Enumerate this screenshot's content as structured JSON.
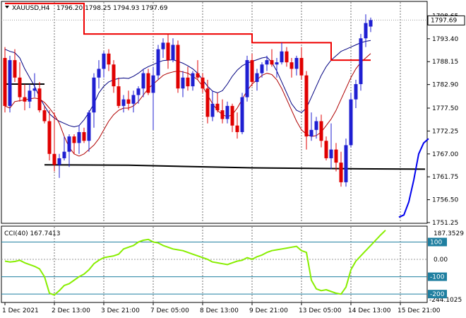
{
  "header": {
    "symbol": "XAUUSD,H4",
    "ohlc": "1796.20 1798.25 1794.93 1797.69"
  },
  "indicator": {
    "label": "CCI(40) 167.7413",
    "levels": [
      {
        "value": 100,
        "label": "100"
      },
      {
        "value": 0,
        "label": "0.00"
      },
      {
        "value": -100,
        "label": "-100"
      },
      {
        "value": -200,
        "label": "-200"
      }
    ],
    "axis_max_label": "187.3529",
    "axis_min_label": "-244.1025"
  },
  "current_price_label": "1797.69",
  "colors": {
    "bull": "#1f1fd2",
    "bear": "#e00000",
    "ma_slow": "#000080",
    "ma_fast": "#b00000",
    "stop": "#ee0000",
    "support": "#000000",
    "fractal": "#0000ee",
    "cci": "#88ee00",
    "level_line": "#1f7fa0"
  },
  "chart_data": [
    {
      "type": "candlestick",
      "x_ticks": [
        {
          "i": 0,
          "label": "1 Dec 2021"
        },
        {
          "i": 10,
          "label": "2 Dec 13:00"
        },
        {
          "i": 20,
          "label": "3 Dec 21:00"
        },
        {
          "i": 30,
          "label": "7 Dec 05:00"
        },
        {
          "i": 40,
          "label": "8 Dec 13:00"
        },
        {
          "i": 50,
          "label": "9 Dec 21:00"
        },
        {
          "i": 60,
          "label": "13 Dec 05:00"
        },
        {
          "i": 70,
          "label": "14 Dec 13:00"
        },
        {
          "i": 80,
          "label": "15 Dec 21:00"
        }
      ],
      "y_ticks": [
        1798.65,
        1793.4,
        1788.15,
        1782.9,
        1777.5,
        1772.25,
        1767.0,
        1761.75,
        1756.5,
        1751.25
      ],
      "ylim": [
        1751.25,
        1801.8
      ],
      "candles": [
        [
          1789.0,
          1791.5,
          1776.5,
          1778.0
        ],
        [
          1778.0,
          1789.5,
          1776.5,
          1788.5
        ],
        [
          1788.5,
          1791.0,
          1783.5,
          1784.5
        ],
        [
          1784.5,
          1788.0,
          1779.0,
          1780.0
        ],
        [
          1780.0,
          1783.0,
          1777.0,
          1779.0
        ],
        [
          1779.0,
          1783.0,
          1777.5,
          1781.5
        ],
        [
          1781.5,
          1785.5,
          1780.0,
          1782.0
        ],
        [
          1782.0,
          1783.5,
          1776.5,
          1777.0
        ],
        [
          1777.0,
          1778.0,
          1774.0,
          1774.5
        ],
        [
          1774.5,
          1777.0,
          1765.5,
          1767.0
        ],
        [
          1767.0,
          1776.5,
          1763.0,
          1764.5
        ],
        [
          1764.5,
          1767.0,
          1761.5,
          1766.0
        ],
        [
          1766.0,
          1771.0,
          1765.5,
          1767.5
        ],
        [
          1767.5,
          1771.5,
          1764.0,
          1771.0
        ],
        [
          1771.0,
          1771.5,
          1767.0,
          1769.5
        ],
        [
          1769.5,
          1773.5,
          1767.0,
          1772.0
        ],
        [
          1772.0,
          1773.0,
          1769.5,
          1770.0
        ],
        [
          1770.0,
          1777.0,
          1767.5,
          1776.5
        ],
        [
          1776.5,
          1785.5,
          1773.0,
          1784.5
        ],
        [
          1784.5,
          1788.5,
          1782.0,
          1786.5
        ],
        [
          1786.5,
          1790.5,
          1784.5,
          1790.0
        ],
        [
          1790.0,
          1791.0,
          1786.0,
          1787.5
        ],
        [
          1787.5,
          1788.5,
          1781.0,
          1782.5
        ],
        [
          1782.5,
          1784.5,
          1777.5,
          1778.0
        ],
        [
          1778.0,
          1780.5,
          1776.5,
          1779.5
        ],
        [
          1779.5,
          1781.5,
          1777.0,
          1778.5
        ],
        [
          1778.5,
          1781.5,
          1776.5,
          1780.5
        ],
        [
          1780.5,
          1782.5,
          1778.5,
          1782.0
        ],
        [
          1782.0,
          1786.5,
          1780.0,
          1785.5
        ],
        [
          1785.5,
          1786.5,
          1780.5,
          1781.0
        ],
        [
          1781.0,
          1787.0,
          1772.5,
          1785.0
        ],
        [
          1785.0,
          1792.0,
          1784.0,
          1791.0
        ],
        [
          1791.0,
          1793.5,
          1789.0,
          1792.5
        ],
        [
          1792.5,
          1794.5,
          1786.5,
          1788.5
        ],
        [
          1788.5,
          1793.5,
          1788.0,
          1792.0
        ],
        [
          1792.0,
          1793.0,
          1781.0,
          1782.0
        ],
        [
          1782.0,
          1786.0,
          1780.0,
          1784.5
        ],
        [
          1784.5,
          1787.0,
          1781.5,
          1782.5
        ],
        [
          1782.5,
          1786.0,
          1781.5,
          1785.5
        ],
        [
          1785.5,
          1788.5,
          1784.0,
          1784.5
        ],
        [
          1784.5,
          1785.5,
          1781.0,
          1782.0
        ],
        [
          1782.0,
          1784.0,
          1774.0,
          1775.5
        ],
        [
          1775.5,
          1781.5,
          1774.5,
          1778.5
        ],
        [
          1778.5,
          1781.0,
          1776.5,
          1777.0
        ],
        [
          1777.0,
          1779.5,
          1774.0,
          1775.0
        ],
        [
          1775.0,
          1779.0,
          1774.0,
          1778.0
        ],
        [
          1778.0,
          1778.5,
          1772.0,
          1773.5
        ],
        [
          1773.5,
          1776.5,
          1770.5,
          1772.0
        ],
        [
          1772.0,
          1781.0,
          1771.5,
          1780.0
        ],
        [
          1780.0,
          1789.5,
          1779.0,
          1788.5
        ],
        [
          1788.5,
          1790.0,
          1782.5,
          1783.5
        ],
        [
          1783.5,
          1786.5,
          1781.5,
          1785.5
        ],
        [
          1785.5,
          1788.0,
          1784.5,
          1787.5
        ],
        [
          1787.5,
          1789.5,
          1786.0,
          1788.5
        ],
        [
          1788.5,
          1791.0,
          1787.0,
          1787.5
        ],
        [
          1787.5,
          1789.0,
          1784.5,
          1788.0
        ],
        [
          1788.0,
          1792.5,
          1787.5,
          1790.5
        ],
        [
          1790.5,
          1791.5,
          1787.0,
          1788.0
        ],
        [
          1788.0,
          1789.0,
          1784.5,
          1786.5
        ],
        [
          1786.5,
          1789.5,
          1785.0,
          1789.0
        ],
        [
          1789.0,
          1791.5,
          1784.0,
          1785.0
        ],
        [
          1785.0,
          1786.0,
          1768.0,
          1771.0
        ],
        [
          1771.0,
          1776.5,
          1770.0,
          1772.5
        ],
        [
          1772.5,
          1775.5,
          1770.5,
          1774.5
        ],
        [
          1774.5,
          1776.0,
          1768.5,
          1770.0
        ],
        [
          1770.0,
          1771.0,
          1765.5,
          1766.0
        ],
        [
          1766.0,
          1774.0,
          1763.5,
          1768.0
        ],
        [
          1768.0,
          1769.5,
          1763.0,
          1765.0
        ],
        [
          1765.0,
          1767.5,
          1759.5,
          1760.5
        ],
        [
          1760.5,
          1770.5,
          1759.5,
          1769.0
        ],
        [
          1769.0,
          1781.0,
          1768.5,
          1779.5
        ],
        [
          1779.5,
          1784.0,
          1777.5,
          1783.0
        ],
        [
          1783.0,
          1794.5,
          1781.5,
          1793.5
        ],
        [
          1793.5,
          1799.0,
          1791.5,
          1797.0
        ],
        [
          1796.2,
          1798.25,
          1794.93,
          1797.69
        ]
      ],
      "ma_slow": [
        1791.0,
        1790.5,
        1790.2,
        1789.0,
        1786.5,
        1784.5,
        1782.5,
        1780.0,
        1778.0,
        1776.2,
        1775.2,
        1774.5,
        1774.0,
        1773.5,
        1773.2,
        1773.5,
        1774.8,
        1776.5,
        1778.5,
        1781.0,
        1782.5,
        1783.5,
        1784.0,
        1784.3,
        1784.4,
        1784.3,
        1784.8,
        1785.5,
        1786.4,
        1787.0,
        1787.5,
        1788.0,
        1788.4,
        1788.5,
        1788.6,
        1788.2,
        1787.8,
        1787.2,
        1786.5,
        1785.5,
        1784.0,
        1782.5,
        1781.4,
        1781.0,
        1781.5,
        1783.0,
        1784.8,
        1786.2,
        1787.2,
        1787.8,
        1788.2,
        1788.6,
        1789.0,
        1789.2,
        1788.0,
        1786.0,
        1783.5,
        1781.0,
        1778.5,
        1777.0,
        1776.5,
        1777.5,
        1780.0,
        1782.5,
        1785.0,
        1787.0,
        1788.5,
        1789.5,
        1790.5,
        1791.0,
        1791.5,
        1792.0,
        1792.5,
        1792.8,
        1793.0
      ],
      "ma_fast": [
        1778.0,
        1777.5,
        1779.0,
        1779.2,
        1779.4,
        1779.6,
        1779.8,
        1779.6,
        1778.8,
        1777.5,
        1776.0,
        1774.0,
        1771.0,
        1768.5,
        1767.0,
        1766.5,
        1767.0,
        1768.0,
        1769.0,
        1770.5,
        1772.5,
        1774.5,
        1776.0,
        1777.0,
        1777.5,
        1777.5,
        1778.0,
        1779.0,
        1780.5,
        1782.0,
        1783.0,
        1784.0,
        1785.0,
        1785.5,
        1785.8,
        1786.0,
        1785.8,
        1785.5,
        1784.8,
        1784.0,
        1782.5,
        1780.5,
        1778.5,
        1777.0,
        1776.0,
        1775.5,
        1776.0,
        1777.5,
        1779.5,
        1781.5,
        1783.0,
        1784.0,
        1785.0,
        1785.5,
        1785.2,
        1784.0,
        1782.0,
        1779.5,
        1777.0,
        1774.5,
        1772.5,
        1771.5,
        1771.0,
        1771.2,
        1772.0,
        1773.5,
        1775.0,
        1777.0,
        1779.5,
        1782.0,
        1784.5,
        1786.5,
        1788.0,
        1789.0,
        1790.0
      ],
      "stop_line": [
        1801.5,
        1801.5,
        1801.5,
        1801.5,
        1801.5,
        1801.5,
        1801.5,
        1801.5,
        1801.5,
        1801.5,
        1801.5,
        1801.5,
        1801.5,
        1801.5,
        1801.5,
        1801.5,
        1794.5,
        1794.5,
        1794.5,
        1794.5,
        1794.5,
        1794.5,
        1794.5,
        1794.5,
        1794.5,
        1794.5,
        1794.5,
        1794.5,
        1794.5,
        1794.5,
        1794.5,
        1794.5,
        1794.5,
        1794.5,
        1794.5,
        1794.5,
        1794.5,
        1794.5,
        1794.5,
        1794.5,
        1794.5,
        1794.5,
        1794.5,
        1794.5,
        1794.5,
        1794.5,
        1794.5,
        1794.5,
        1794.5,
        1794.5,
        1792.5,
        1792.5,
        1792.5,
        1792.5,
        1792.5,
        1792.5,
        1792.5,
        1792.5,
        1792.5,
        1792.5,
        1792.5,
        1792.5,
        1792.5,
        1792.5,
        1792.5,
        1792.5,
        1788.5,
        1788.5,
        1788.5,
        1788.5,
        1788.5,
        1788.5,
        1788.5,
        1788.5,
        1788.5
      ],
      "support_line": [
        [
          8,
          1764.5
        ],
        [
          25,
          1764.4
        ],
        [
          50,
          1763.8
        ],
        [
          70,
          1763.6
        ],
        [
          85,
          1763.5
        ]
      ],
      "resistance_stub": [
        [
          0,
          1783.0
        ],
        [
          8,
          1783.0
        ]
      ],
      "fractal_blue": [
        [
          80,
          1752.5
        ],
        [
          81,
          1753.0
        ],
        [
          82,
          1756.0
        ],
        [
          83,
          1761.0
        ],
        [
          84,
          1767.0
        ],
        [
          85,
          1769.5
        ],
        [
          86,
          1770.5
        ]
      ],
      "current_price": 1797.69
    },
    {
      "type": "line",
      "name": "CCI(40) 167.7413",
      "ylim": [
        -244.1025,
        187.3529
      ],
      "values": [
        -10,
        -15,
        -12,
        -5,
        -20,
        -30,
        -40,
        -55,
        -100,
        -195,
        -205,
        -180,
        -150,
        -140,
        -120,
        -100,
        -85,
        -60,
        -25,
        -5,
        10,
        15,
        20,
        30,
        60,
        70,
        80,
        100,
        110,
        115,
        100,
        95,
        80,
        70,
        60,
        55,
        50,
        40,
        30,
        20,
        10,
        0,
        -15,
        -20,
        -25,
        -30,
        -20,
        -10,
        -5,
        10,
        0,
        15,
        25,
        40,
        50,
        55,
        60,
        65,
        70,
        75,
        50,
        40,
        -120,
        -170,
        -180,
        -175,
        -185,
        -195,
        -200,
        -160,
        -60,
        -10,
        20,
        50,
        80,
        110,
        140,
        167.7413
      ]
    }
  ]
}
